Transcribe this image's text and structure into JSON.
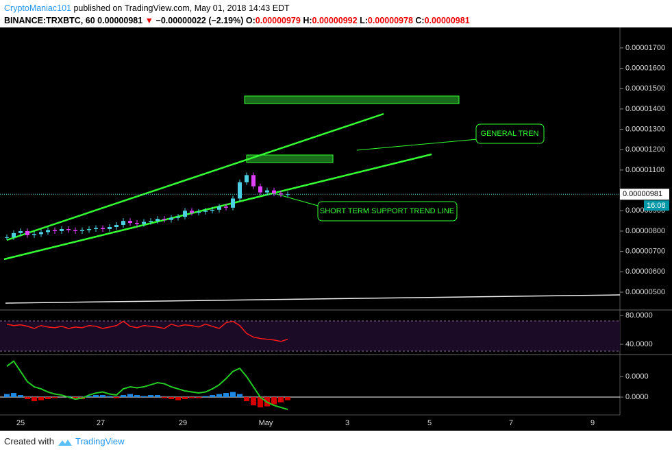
{
  "header": {
    "author": "CryptoManiac101",
    "published": "published on TradingView.com, May 01, 2018 14:43 EDT",
    "symbol": "BINANCE:TRXBTC, 60",
    "last": "0.00000981",
    "arrow": "▼",
    "change": "−0.00000022 (−2.19%)",
    "ohlc": [
      {
        "key": "O:",
        "val": "0.00000979"
      },
      {
        "key": "H:",
        "val": "0.00000992"
      },
      {
        "key": "L:",
        "val": "0.00000978"
      },
      {
        "key": "C:",
        "val": "0.00000981"
      }
    ]
  },
  "chart_data": [
    {
      "type": "candles",
      "up_color": "#4dd0e1",
      "down_color": "#e040fb",
      "values": [
        7.7e-06,
        7.9e-06,
        8e-06,
        7.8e-06,
        7.85e-06,
        7.95e-06,
        8.05e-06,
        8e-06,
        8.1e-06,
        8.05e-06,
        8e-06,
        8.05e-06,
        8.1e-06,
        8.15e-06,
        8.1e-06,
        8.2e-06,
        8.3e-06,
        8.5e-06,
        8.4e-06,
        8.35e-06,
        8.45e-06,
        8.5e-06,
        8.6e-06,
        8.55e-06,
        8.65e-06,
        8.7e-06,
        9e-06,
        8.9e-06,
        8.95e-06,
        9e-06,
        9.05e-06,
        9.2e-06,
        9.15e-06,
        9.6e-06,
        1.04e-05,
        1.075e-05,
        1.02e-05,
        9.9e-06,
        1e-05,
        9.85e-06,
        9.8e-06,
        9.81e-06
      ],
      "ylim": [
        4.19e-06,
        1.794e-05
      ],
      "yticks": [
        {
          "value": 1.7e-05,
          "label": "0.00001700"
        },
        {
          "value": 1.6e-05,
          "label": "0.00001600"
        },
        {
          "value": 1.5e-05,
          "label": "0.00001500"
        },
        {
          "value": 1.4e-05,
          "label": "0.00001400"
        },
        {
          "value": 1.3e-05,
          "label": "0.00001300"
        },
        {
          "value": 1.2e-05,
          "label": "0.00001200"
        },
        {
          "value": 1.1e-05,
          "label": "0.00001100"
        },
        {
          "value": 9e-06,
          "label": "0.00000900"
        },
        {
          "value": 8e-06,
          "label": "0.00000800"
        },
        {
          "value": 7e-06,
          "label": "0.00000700"
        },
        {
          "value": 6e-06,
          "label": "0.00000600"
        },
        {
          "value": 5e-06,
          "label": "0.00000500"
        }
      ],
      "last_price": {
        "value": 9.81e-06,
        "label": "0.00000981"
      },
      "countdown": "16:08",
      "x_tick_labels": [
        "25",
        "27",
        "29",
        "May",
        "3",
        "5",
        "7",
        "9"
      ],
      "annotations": [
        "GENERAL TREN",
        "SHORT TERM SUPPORT TREND LINE"
      ]
    },
    {
      "type": "line",
      "color": "#ff1a1a",
      "values": [
        68,
        66,
        67,
        65,
        62,
        66,
        64,
        63,
        65,
        62,
        64,
        63,
        66,
        65,
        62,
        64,
        66,
        72,
        65,
        63,
        66,
        65,
        64,
        62,
        68,
        65,
        67,
        66,
        64,
        68,
        65,
        62,
        70,
        72,
        66,
        55,
        50,
        48,
        47,
        46,
        44,
        47
      ],
      "ylim": [
        26.7,
        86.7
      ],
      "yticks": [
        {
          "value": 80,
          "label": "80.0000"
        },
        {
          "value": 40,
          "label": "40.0000"
        }
      ]
    },
    {
      "type": "macd",
      "line_color": "#22cc22",
      "up_color": "#1e88e5",
      "down_color": "#d50000",
      "macd": [
        3e-07,
        3.5e-07,
        2.5e-07,
        1.5e-07,
        1e-07,
        8e-08,
        5e-08,
        3e-08,
        2e-08,
        0,
        -2e-08,
        -1e-08,
        2e-08,
        4e-08,
        5e-08,
        3e-08,
        2e-08,
        8e-08,
        1e-07,
        9e-08,
        1e-07,
        1.2e-07,
        1.4e-07,
        1.3e-07,
        1e-07,
        8e-08,
        6e-08,
        5e-08,
        4e-08,
        5e-08,
        8e-08,
        1.2e-07,
        1.8e-07,
        2.5e-07,
        2.8e-07,
        2e-07,
        1e-07,
        0,
        -5e-08,
        -8e-08,
        -1e-07,
        -1.2e-07
      ],
      "values": [
        3e-08,
        4e-08,
        2e-08,
        -2e-08,
        -4e-08,
        -3e-08,
        -2e-08,
        -1e-08,
        0,
        1e-08,
        -1e-08,
        -2e-08,
        1e-08,
        2e-08,
        2e-08,
        1e-08,
        -1e-08,
        2e-08,
        3e-08,
        2e-08,
        1e-08,
        2e-08,
        2e-08,
        -1e-08,
        -2e-08,
        -3e-08,
        -2e-08,
        -1e-08,
        -1e-08,
        1e-08,
        2e-08,
        3e-08,
        4e-08,
        5e-08,
        3e-08,
        -4e-08,
        -8e-08,
        -1e-07,
        -9e-08,
        -7e-08,
        -5e-08,
        -3e-08
      ],
      "ylim": [
        -1.73e-07,
        4.07e-07
      ],
      "yticks": [
        {
          "value": 2e-07,
          "label": "0.0000"
        },
        {
          "value": 0,
          "label": "0.0000"
        }
      ]
    }
  ],
  "footer": {
    "created": "Created with",
    "brand": "TradingView"
  }
}
